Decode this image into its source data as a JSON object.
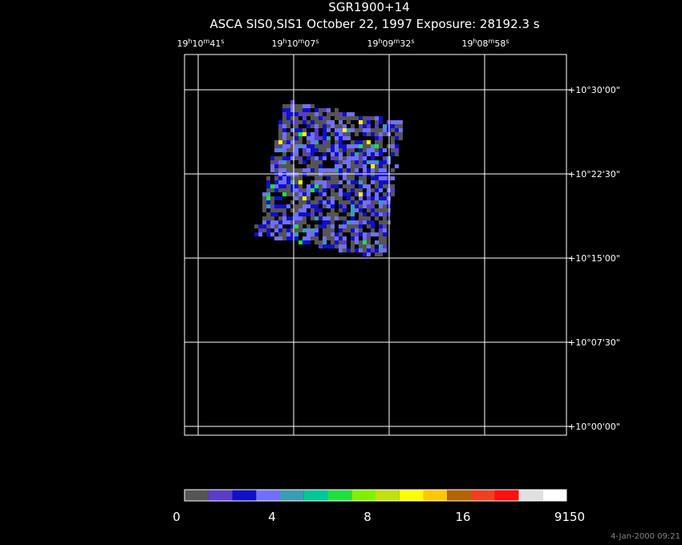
{
  "header": {
    "title": "SGR1900+14",
    "subtitle": "ASCA SIS0,SIS1 October 22, 1997 Exposure: 28192.3 s"
  },
  "ra_labels": [
    [
      "19",
      "h",
      "10",
      "m",
      "41",
      "s"
    ],
    [
      "19",
      "h",
      "10",
      "m",
      "07",
      "s"
    ],
    [
      "19",
      "h",
      "09",
      "m",
      "32",
      "s"
    ],
    [
      "19",
      "h",
      "08",
      "m",
      "58",
      "s"
    ]
  ],
  "dec_labels": [
    "+10°30'00\"",
    "+10°22'30\"",
    "+10°15'00\"",
    "+10°07'30\"",
    "+10°00'00\""
  ],
  "colorbar": {
    "colors": [
      "#555555",
      "#5a3cc8",
      "#1010c8",
      "#7070ff",
      "#3c9cb4",
      "#00c896",
      "#20e040",
      "#80f000",
      "#c0e010",
      "#ffff00",
      "#ffc800",
      "#b46400",
      "#f04020",
      "#ff1010",
      "#e0e0e0",
      "#ffffff"
    ],
    "labels": [
      "0",
      "4",
      "8",
      "16",
      "9150"
    ]
  },
  "footer": {
    "timestamp": "4-Jan-2000 09:21"
  }
}
